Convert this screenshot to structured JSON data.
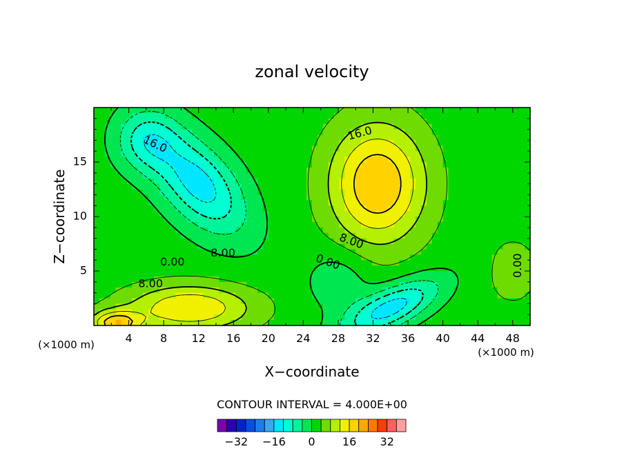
{
  "chart_data": {
    "type": "heatmap",
    "title": "zonal velocity",
    "xlabel": "X−coordinate",
    "ylabel": "Z−coordinate",
    "x_units": "(×1000 m)",
    "y_units": "(×1000 m)",
    "xlim": [
      0,
      50
    ],
    "ylim": [
      0,
      20
    ],
    "x_ticks": [
      "4",
      "8",
      "12",
      "16",
      "20",
      "24",
      "28",
      "32",
      "36",
      "40",
      "44",
      "48"
    ],
    "y_ticks": [
      "5",
      "10",
      "15"
    ],
    "contour_interval_label": "CONTOUR INTERVAL = 4.000E+00",
    "contour_interval": 4,
    "colorbar": {
      "levels": [
        -40,
        -36,
        -32,
        -28,
        -24,
        -20,
        -16,
        -12,
        -8,
        -4,
        0,
        4,
        8,
        12,
        16,
        20,
        24,
        28,
        32,
        36,
        40
      ],
      "tick_labels": [
        "−32",
        "−16",
        "0",
        "16",
        "32"
      ],
      "colors": [
        "#7a00b4",
        "#2a00b4",
        "#0024c8",
        "#0050e6",
        "#1c7cf0",
        "#3ca6f0",
        "#00e6ff",
        "#00ffd2",
        "#00f59a",
        "#00e650",
        "#00d700",
        "#6edc00",
        "#b4f000",
        "#f0f000",
        "#ffd200",
        "#ffaa00",
        "#ff7800",
        "#ff3c00",
        "#ff6060",
        "#ffa0a0"
      ]
    },
    "contour_labels": [
      "16.0",
      "16.0",
      "8.00",
      "8.00",
      "8.00",
      "0.00",
      "0.00",
      "0.00"
    ],
    "features": [
      {
        "x": 12.0,
        "z": 13.0,
        "value": -16,
        "sigma_x": 4.5,
        "sigma_z": 2.4,
        "rotation_deg": -37
      },
      {
        "x": 6.0,
        "z": 17.0,
        "value": -10,
        "sigma_x": 2.5,
        "sigma_z": 2.0
      },
      {
        "x": 32.5,
        "z": 13.0,
        "value": 18,
        "sigma_x": 3.8,
        "sigma_z": 3.8
      },
      {
        "x": 34.0,
        "z": 1.6,
        "value": -16,
        "sigma_x": 4.2,
        "sigma_z": 1.3,
        "rotation_deg": 20
      },
      {
        "x": 28.0,
        "z": 4.0,
        "value": -5,
        "sigma_x": 2.5,
        "sigma_z": 2.0
      },
      {
        "x": 11.0,
        "z": 1.6,
        "value": 14,
        "sigma_x": 5.0,
        "sigma_z": 1.5
      },
      {
        "x": 2.5,
        "z": 0.2,
        "value": 16,
        "sigma_x": 2.0,
        "sigma_z": 0.8
      },
      {
        "x": 48.0,
        "z": 5.0,
        "value": 3,
        "sigma_x": 3.0,
        "sigma_z": 3.0
      }
    ],
    "background_value": 2
  }
}
